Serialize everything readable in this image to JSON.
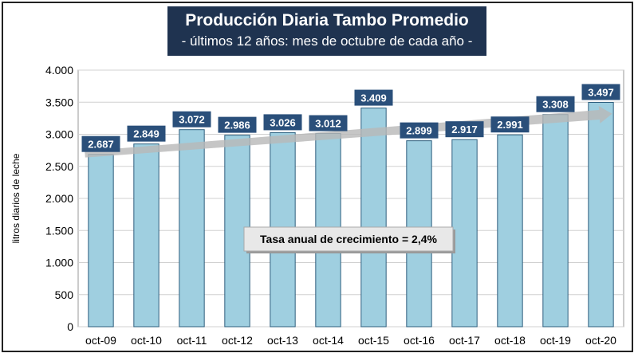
{
  "chart_data": {
    "type": "bar",
    "title": "Producción Diaria Tambo Promedio",
    "subtitle": "- últimos 12 años: mes de octubre de cada año -",
    "ylabel": "litros diarios de leche",
    "xlabel": "",
    "categories": [
      "oct-09",
      "oct-10",
      "oct-11",
      "oct-12",
      "oct-13",
      "oct-14",
      "oct-15",
      "oct-16",
      "oct-17",
      "oct-18",
      "oct-19",
      "oct-20"
    ],
    "values": [
      2687,
      2849,
      3072,
      2986,
      3026,
      3012,
      3409,
      2899,
      2917,
      2991,
      3308,
      3497
    ],
    "data_labels": [
      "2.687",
      "2.849",
      "3.072",
      "2.986",
      "3.026",
      "3.012",
      "3.409",
      "2.899",
      "2.917",
      "2.991",
      "3.308",
      "3.497"
    ],
    "ylim": [
      0,
      4000
    ],
    "yticks": [
      0,
      500,
      1000,
      1500,
      2000,
      2500,
      3000,
      3500,
      4000
    ],
    "ytick_labels": [
      "0",
      "500",
      "1.000",
      "1.500",
      "2.000",
      "2.500",
      "3.000",
      "3.500",
      "4.000"
    ],
    "grid": true,
    "annotation": "Tasa anual de crecimiento = 2,4%",
    "trend_arrow": true,
    "colors": {
      "bar": "#9fcfe0",
      "bar_border": "#2e5f7e",
      "label_bg": "#2a4f7a",
      "title_bg": "#1f3350",
      "arrow": "#b8b8b8"
    }
  }
}
